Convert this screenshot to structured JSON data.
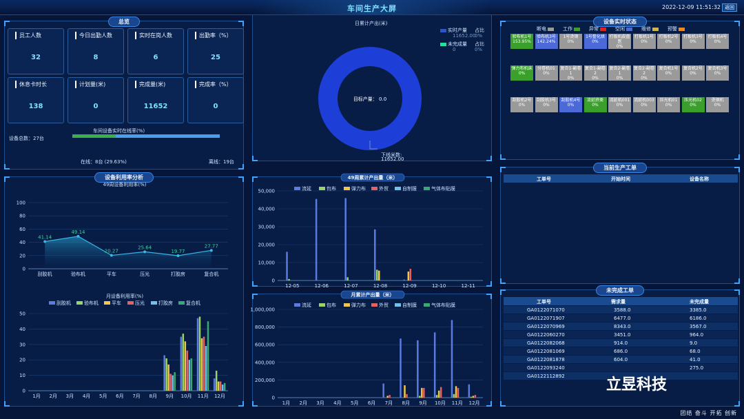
{
  "header": {
    "title": "车间生产大屏",
    "datetime": "2022-12-09 11:51:32",
    "back_label": "返回"
  },
  "overview": {
    "title": "总览",
    "cards": [
      {
        "label": "员工人数",
        "value": "32"
      },
      {
        "label": "今日出勤人数",
        "value": "8"
      },
      {
        "label": "实时在岗人数",
        "value": "6"
      },
      {
        "label": "出勤率（%）",
        "value": "25"
      },
      {
        "label": "休息卡时长",
        "value": "138"
      },
      {
        "label": "计划量(米)",
        "value": "0"
      },
      {
        "label": "完成量(米)",
        "value": "11652"
      },
      {
        "label": "完成率（%）",
        "value": "0"
      }
    ],
    "online_title": "车间设备实时在线率(%)",
    "device_total": "设备总数：27台",
    "online_text": "在线：8台 (29.63%)",
    "offline_text": "离线：19台",
    "online_fraction": 0.2963
  },
  "daily": {
    "title": "日累计产出(米)",
    "legend": [
      {
        "name": "实时产量",
        "ratio_label": "占比",
        "value": "11652.00",
        "pct": "0%",
        "color": "#2b55c8"
      },
      {
        "name": "未完成量",
        "ratio_label": "占比",
        "value": "0",
        "pct": "0%",
        "color": "#26e0a0"
      }
    ],
    "center_text": "目标产量： 0.0",
    "callout_label": "下线米数:",
    "callout_value": "11652.00"
  },
  "device_status": {
    "title": "设备实时状态",
    "legend": [
      {
        "name": "断电",
        "color": "#9a9a9a"
      },
      {
        "name": "工作",
        "color": "#3aa02b"
      },
      {
        "name": "异常",
        "color": "#e02020"
      },
      {
        "name": "空闲",
        "color": "#4b6ad8"
      },
      {
        "name": "维修",
        "color": "#c9b84a"
      },
      {
        "name": "预警",
        "color": "#e88a2a"
      }
    ],
    "rows": [
      [
        {
          "name": "验布机1号",
          "pct": "153.95%",
          "color": "#3aa02b"
        },
        {
          "name": "验布机3号",
          "pct": "142.24%",
          "color": "#4b6ad8"
        },
        {
          "name": "1号烫钢",
          "pct": "0%",
          "color": "#9a9a9a"
        },
        {
          "name": "1号整化烘",
          "pct": "0%",
          "color": "#4b6ad8"
        },
        {
          "name": "打板机皮盘医",
          "pct": "0%",
          "color": "#9a9a9a"
        },
        {
          "name": "打板机1号",
          "pct": "0%",
          "color": "#9a9a9a"
        },
        {
          "name": "打板机2号",
          "pct": "0%",
          "color": "#9a9a9a"
        },
        {
          "name": "打板机3号",
          "pct": "0%",
          "color": "#9a9a9a"
        },
        {
          "name": "打板机4号",
          "pct": "0%",
          "color": "#9a9a9a"
        }
      ],
      [
        {
          "name": "弹力布机床",
          "pct": "0%",
          "color": "#3aa02b"
        },
        {
          "name": "分卷机01",
          "pct": "0%",
          "color": "#9a9a9a"
        },
        {
          "name": "复合1-副卷1",
          "pct": "0%",
          "color": "#9a9a9a"
        },
        {
          "name": "复合1-副卷2",
          "pct": "0%",
          "color": "#9a9a9a"
        },
        {
          "name": "复合2-副卷1",
          "pct": "0%",
          "color": "#9a9a9a"
        },
        {
          "name": "复合2-副卷2",
          "pct": "0%",
          "color": "#9a9a9a"
        },
        {
          "name": "复合机1号",
          "pct": "0%",
          "color": "#9a9a9a"
        },
        {
          "name": "复合机2号",
          "pct": "0%",
          "color": "#9a9a9a"
        },
        {
          "name": "复合机3号",
          "pct": "0%",
          "color": "#9a9a9a"
        }
      ],
      [
        {
          "name": "刮胶机2号",
          "pct": "0%",
          "color": "#9a9a9a"
        },
        {
          "name": "刮胶机3号",
          "pct": "0%",
          "color": "#9a9a9a"
        },
        {
          "name": "刮胶机4号",
          "pct": "0%",
          "color": "#4b6ad8"
        },
        {
          "name": "流延挤类",
          "pct": "0%",
          "color": "#3aa02b"
        },
        {
          "name": "流延机001",
          "pct": "0%",
          "color": "#9a9a9a"
        },
        {
          "name": "流延机003",
          "pct": "0%",
          "color": "#9a9a9a"
        },
        {
          "name": "压光机01",
          "pct": "0%",
          "color": "#9a9a9a"
        },
        {
          "name": "压光机02",
          "pct": "0%",
          "color": "#3aa02b"
        },
        {
          "name": "烫钢机",
          "pct": "0%",
          "color": "#9a9a9a"
        }
      ]
    ]
  },
  "current_orders": {
    "title": "当前生产工单",
    "columns": [
      "工单号",
      "开始时间",
      "设备名称"
    ]
  },
  "unfinished_orders": {
    "title": "未完成工单",
    "columns": [
      "工单号",
      "需求量",
      "未完成量"
    ],
    "rows": [
      [
        "GA0122071070",
        "3588.0",
        "3385.0"
      ],
      [
        "GA0122071907",
        "6477.0",
        "6186.0"
      ],
      [
        "GA0122070969",
        "8343.0",
        "3567.0"
      ],
      [
        "GA0122060270",
        "3451.0",
        "964.0"
      ],
      [
        "GA0122082068",
        "914.0",
        "9.0"
      ],
      [
        "GA0122081069",
        "686.0",
        "68.0"
      ],
      [
        "GA0122081878",
        "604.0",
        "41.0"
      ],
      [
        "GA0122093240",
        "",
        "275.0"
      ],
      [
        "GA0122112892",
        "",
        ""
      ]
    ]
  },
  "util_panel_title": "设备利用率分析",
  "watermark": "立昱科技",
  "footer": "团结 奋斗 开拓 创新",
  "chart_data": [
    {
      "type": "line",
      "title": "49周设备利用率(%)",
      "categories": [
        "刮胶机",
        "验布机",
        "平车",
        "压光",
        "打胶房",
        "复合机"
      ],
      "values": [
        41.14,
        49.14,
        20.27,
        25.64,
        19.77,
        27.77
      ],
      "ylim": [
        0,
        100
      ],
      "yticks": [
        0,
        20,
        40,
        60,
        80,
        100
      ],
      "color": "#39b7e6"
    },
    {
      "type": "bar",
      "title": "月设备利用率(%)",
      "categories": [
        "1月",
        "2月",
        "3月",
        "4月",
        "5月",
        "6月",
        "7月",
        "8月",
        "9月",
        "10月",
        "11月",
        "12月"
      ],
      "ylim": [
        0,
        50
      ],
      "yticks": [
        0,
        10,
        20,
        30,
        40,
        50
      ],
      "series": [
        {
          "name": "刮胶机",
          "color": "#5b7be0",
          "values": [
            0,
            0,
            0,
            0,
            0,
            0,
            0,
            0,
            23,
            35,
            47,
            8
          ]
        },
        {
          "name": "验布机",
          "color": "#9ad36a",
          "values": [
            0,
            0,
            0,
            0,
            0,
            0,
            0,
            0,
            21,
            37,
            48,
            13
          ]
        },
        {
          "name": "平车",
          "color": "#f3c64a",
          "values": [
            0,
            0,
            0,
            0,
            0,
            0,
            0,
            0,
            17,
            32,
            34,
            6
          ]
        },
        {
          "name": "压光",
          "color": "#e86060",
          "values": [
            0,
            0,
            0,
            0,
            0,
            0,
            0,
            0,
            11,
            26,
            35,
            6
          ]
        },
        {
          "name": "打胶房",
          "color": "#6ec3ea",
          "values": [
            0,
            0,
            0,
            0,
            0,
            0,
            0,
            0,
            10,
            20,
            29,
            4
          ]
        },
        {
          "name": "复合机",
          "color": "#3aa874",
          "values": [
            0,
            0,
            0,
            0,
            0,
            0,
            0,
            0,
            12,
            21,
            45,
            5
          ]
        }
      ]
    },
    {
      "type": "bar",
      "title": "49周累计产出量（米）",
      "categories": [
        "12-05",
        "12-06",
        "12-07",
        "12-08",
        "12-09",
        "12-10",
        "12-11"
      ],
      "ylim": [
        0,
        50000
      ],
      "yticks": [
        0,
        10000,
        20000,
        30000,
        40000,
        50000
      ],
      "ytick_labels": [
        "0",
        "10,000",
        "20,000",
        "30,000",
        "40,000",
        "50,000"
      ],
      "series": [
        {
          "name": "流延",
          "color": "#5b7be0",
          "values": [
            16000,
            45500,
            46000,
            28500,
            500,
            0,
            0
          ]
        },
        {
          "name": "包布",
          "color": "#9ad36a",
          "values": [
            800,
            0,
            1800,
            6000,
            0,
            0,
            0
          ]
        },
        {
          "name": "弹力布",
          "color": "#f3c64a",
          "values": [
            0,
            0,
            0,
            5500,
            5000,
            0,
            0
          ]
        },
        {
          "name": "外贸",
          "color": "#e86060",
          "values": [
            0,
            0,
            0,
            0,
            6500,
            0,
            0
          ]
        },
        {
          "name": "自制膜",
          "color": "#6ec3ea",
          "values": [
            0,
            0,
            0,
            0,
            0,
            0,
            0
          ]
        },
        {
          "name": "气体布贴膜",
          "color": "#3aa874",
          "values": [
            0,
            0,
            0,
            0,
            0,
            0,
            0
          ]
        }
      ]
    },
    {
      "type": "bar",
      "title": "月累计产出量（米）",
      "categories": [
        "1月",
        "2月",
        "3月",
        "4月",
        "5月",
        "6月",
        "7月",
        "8月",
        "9月",
        "10月",
        "11月",
        "12月"
      ],
      "ylim": [
        0,
        1000000
      ],
      "yticks": [
        0,
        200000,
        400000,
        600000,
        800000,
        1000000
      ],
      "ytick_labels": [
        "0",
        "200,000",
        "400,000",
        "600,000",
        "800,000",
        "1,000,000"
      ],
      "series": [
        {
          "name": "流延",
          "color": "#5b7be0",
          "values": [
            0,
            0,
            0,
            0,
            0,
            0,
            160000,
            670000,
            650000,
            740000,
            880000,
            150000
          ]
        },
        {
          "name": "包布",
          "color": "#9ad36a",
          "values": [
            0,
            0,
            0,
            0,
            0,
            0,
            0,
            0,
            20000,
            30000,
            40000,
            10000
          ]
        },
        {
          "name": "弹力布",
          "color": "#f3c64a",
          "values": [
            0,
            0,
            0,
            0,
            0,
            0,
            20000,
            140000,
            110000,
            80000,
            130000,
            20000
          ]
        },
        {
          "name": "外贸",
          "color": "#e86060",
          "values": [
            0,
            0,
            0,
            0,
            0,
            0,
            30000,
            40000,
            110000,
            120000,
            110000,
            30000
          ]
        },
        {
          "name": "自制膜",
          "color": "#6ec3ea",
          "values": [
            0,
            0,
            0,
            0,
            0,
            0,
            0,
            0,
            0,
            0,
            0,
            0
          ]
        },
        {
          "name": "气体布贴膜",
          "color": "#3aa874",
          "values": [
            0,
            0,
            0,
            0,
            0,
            0,
            0,
            0,
            0,
            0,
            0,
            0
          ]
        }
      ]
    }
  ]
}
